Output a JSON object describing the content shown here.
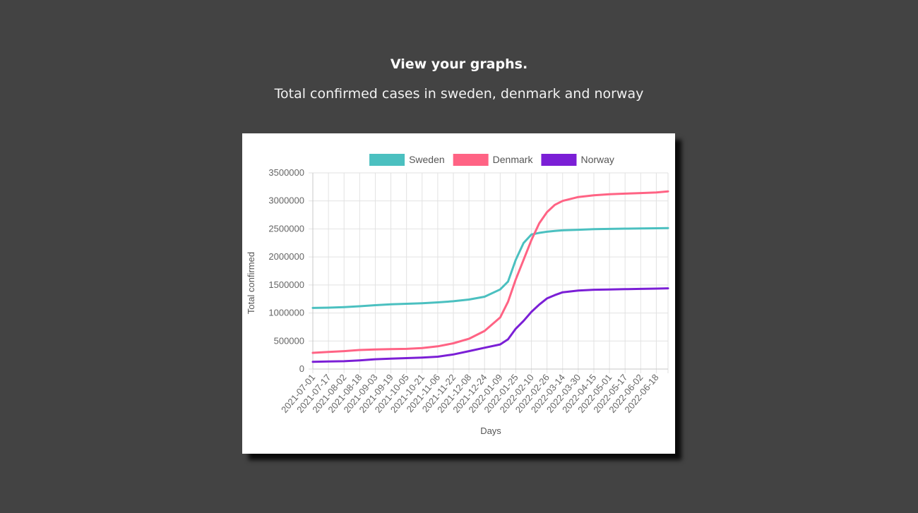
{
  "page": {
    "heading": "View your graphs.",
    "subheading": "Total confirmed cases in sweden, denmark and norway"
  },
  "chart_data": {
    "type": "line",
    "title": "",
    "xlabel": "Days",
    "ylabel": "Total confirmed",
    "ylim": [
      0,
      3500000
    ],
    "yticks": [
      0,
      500000,
      1000000,
      1500000,
      2000000,
      2500000,
      3000000,
      3500000
    ],
    "ytick_labels": [
      "0",
      "500000",
      "1000000",
      "1500000",
      "2000000",
      "2500000",
      "3000000",
      "3500000"
    ],
    "grid": true,
    "legend_position": "top",
    "x_ticks": [
      "2021-07-01",
      "2021-07-17",
      "2021-08-02",
      "2021-08-18",
      "2021-09-03",
      "2021-09-19",
      "2021-10-05",
      "2021-10-21",
      "2021-11-06",
      "2021-11-22",
      "2021-12-08",
      "2021-12-24",
      "2022-01-09",
      "2022-01-25",
      "2022-02-10",
      "2022-02-26",
      "2022-03-14",
      "2022-03-30",
      "2022-04-15",
      "2022-05-01",
      "2022-05-17",
      "2022-06-02",
      "2022-06-18"
    ],
    "x_dates": [
      "2021-07-01",
      "2021-07-17",
      "2021-08-02",
      "2021-08-18",
      "2021-09-03",
      "2021-09-19",
      "2021-10-05",
      "2021-10-21",
      "2021-11-06",
      "2021-11-22",
      "2021-12-08",
      "2021-12-24",
      "2022-01-09",
      "2022-01-17",
      "2022-01-25",
      "2022-02-02",
      "2022-02-10",
      "2022-02-18",
      "2022-02-26",
      "2022-03-06",
      "2022-03-14",
      "2022-03-30",
      "2022-04-15",
      "2022-05-01",
      "2022-05-17",
      "2022-06-02",
      "2022-06-18",
      "2022-06-30"
    ],
    "series": [
      {
        "name": "Sweden",
        "color": "#4bc0c0",
        "values": [
          1090000,
          1095000,
          1105000,
          1120000,
          1140000,
          1155000,
          1165000,
          1175000,
          1190000,
          1210000,
          1240000,
          1290000,
          1420000,
          1560000,
          1950000,
          2250000,
          2400000,
          2430000,
          2450000,
          2465000,
          2475000,
          2485000,
          2495000,
          2500000,
          2505000,
          2508000,
          2512000,
          2515000
        ]
      },
      {
        "name": "Denmark",
        "color": "#ff6384",
        "values": [
          290000,
          305000,
          320000,
          340000,
          350000,
          355000,
          360000,
          375000,
          405000,
          460000,
          540000,
          680000,
          920000,
          1200000,
          1600000,
          1950000,
          2300000,
          2600000,
          2800000,
          2930000,
          3000000,
          3070000,
          3100000,
          3120000,
          3130000,
          3140000,
          3150000,
          3170000
        ]
      },
      {
        "name": "Norway",
        "color": "#7b1fd6",
        "values": [
          130000,
          135000,
          140000,
          155000,
          175000,
          185000,
          195000,
          205000,
          220000,
          260000,
          320000,
          380000,
          440000,
          530000,
          720000,
          860000,
          1020000,
          1150000,
          1260000,
          1320000,
          1370000,
          1400000,
          1415000,
          1420000,
          1425000,
          1430000,
          1435000,
          1440000
        ]
      }
    ]
  }
}
